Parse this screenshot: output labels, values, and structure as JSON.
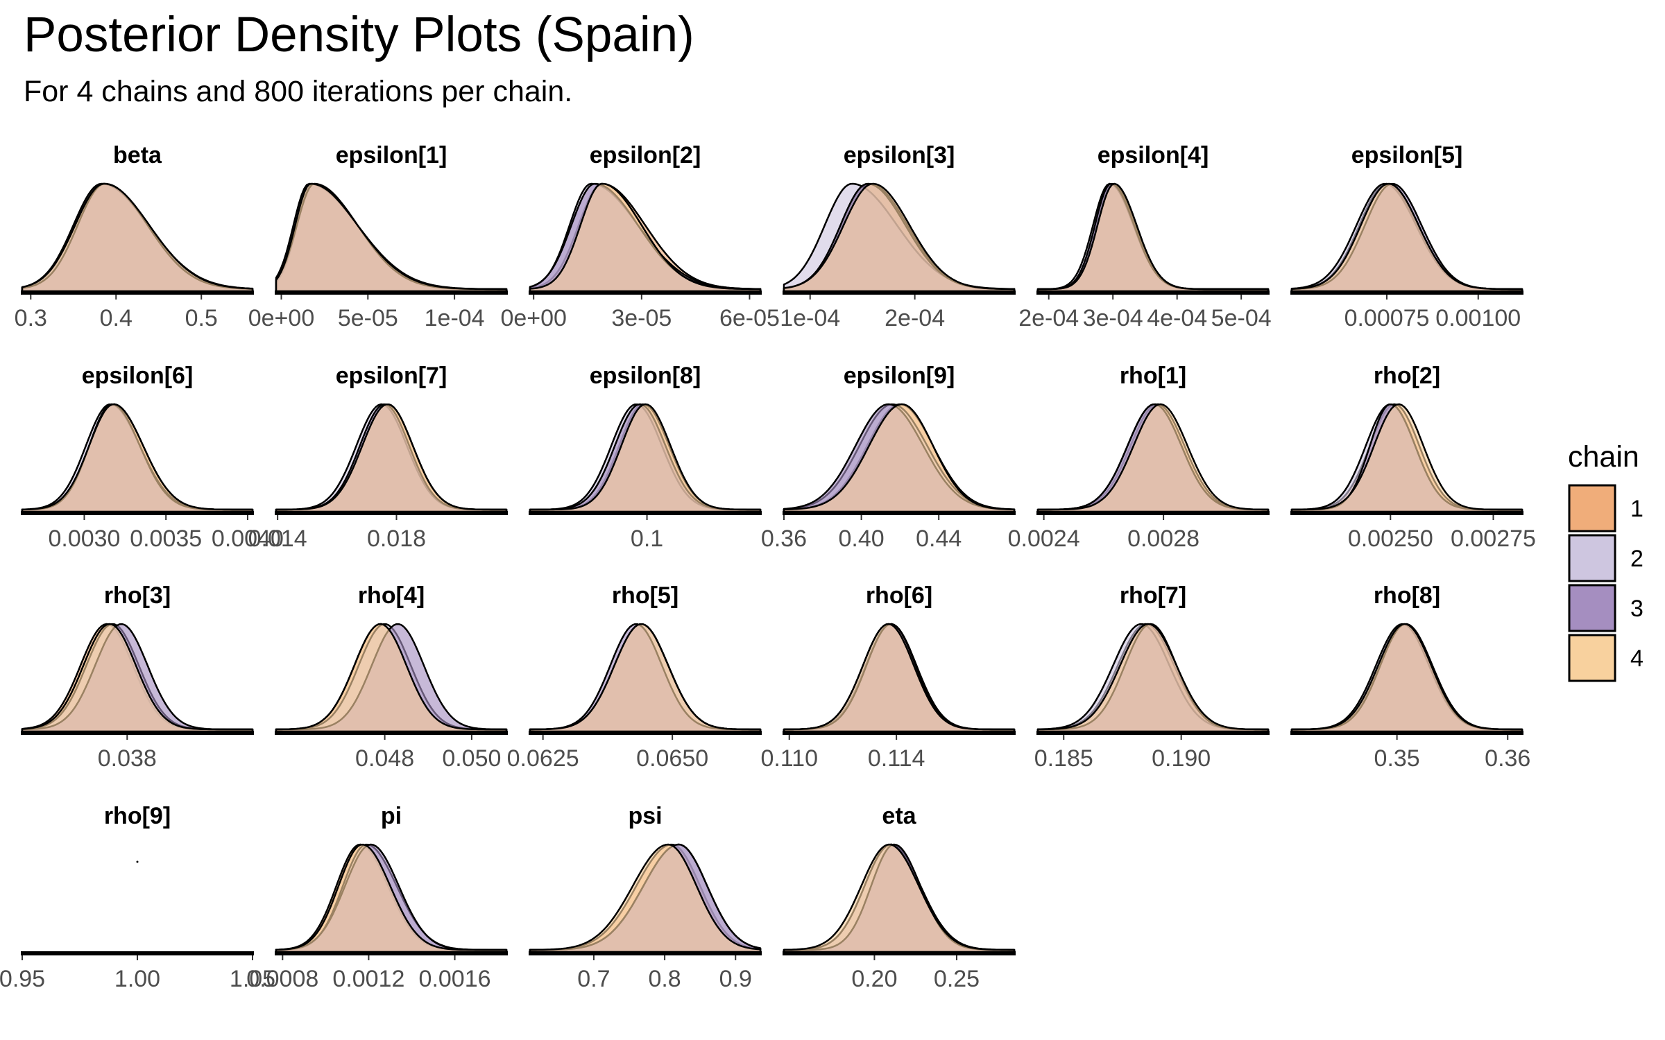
{
  "title": "Posterior Density Plots (Spain)",
  "subtitle": "For 4 chains and 800 iterations per chain.",
  "legend": {
    "title": "chain",
    "items": [
      {
        "label": "1",
        "color": "#F0AD7A"
      },
      {
        "label": "2",
        "color": "#CEC6E0"
      },
      {
        "label": "3",
        "color": "#A58EC0"
      },
      {
        "label": "4",
        "color": "#F8D19E"
      }
    ]
  },
  "chart_data": {
    "type": "area",
    "grid": false,
    "legend_position": "right",
    "series_names": [
      "1",
      "2",
      "3",
      "4"
    ],
    "panels": [
      {
        "name": "beta",
        "xlim": [
          0.29,
          0.56
        ],
        "ticks": [
          {
            "v": 0.3,
            "label": "0.3"
          },
          {
            "v": 0.4,
            "label": "0.4"
          },
          {
            "v": 0.5,
            "label": "0.5"
          }
        ],
        "chains": [
          {
            "mode": 0.385,
            "sd_left": 0.033,
            "sd_right": 0.052
          },
          {
            "mode": 0.383,
            "sd_left": 0.033,
            "sd_right": 0.055
          },
          {
            "mode": 0.387,
            "sd_left": 0.032,
            "sd_right": 0.05
          },
          {
            "mode": 0.386,
            "sd_left": 0.034,
            "sd_right": 0.053
          }
        ]
      },
      {
        "name": "epsilon[1]",
        "xlim": [
          -3e-06,
          0.00013
        ],
        "ticks": [
          {
            "v": 0,
            "label": "0e+00"
          },
          {
            "v": 5e-05,
            "label": "5e-05"
          },
          {
            "v": 0.0001,
            "label": "1e-04"
          }
        ],
        "chains": [
          {
            "mode": 1.8e-05,
            "sd_left": 9e-06,
            "sd_right": 2.6e-05
          },
          {
            "mode": 1.6e-05,
            "sd_left": 9e-06,
            "sd_right": 2.8e-05
          },
          {
            "mode": 1.9e-05,
            "sd_left": 1e-05,
            "sd_right": 2.5e-05
          },
          {
            "mode": 1.7e-05,
            "sd_left": 9e-06,
            "sd_right": 2.7e-05
          }
        ]
      },
      {
        "name": "epsilon[2]",
        "xlim": [
          -1e-06,
          6.3e-05
        ],
        "ticks": [
          {
            "v": 0,
            "label": "0e+00"
          },
          {
            "v": 3e-05,
            "label": "3e-05"
          },
          {
            "v": 6e-05,
            "label": "6e-05"
          }
        ],
        "chains": [
          {
            "mode": 1.9e-05,
            "sd_left": 6.5e-06,
            "sd_right": 1.2e-05
          },
          {
            "mode": 1.6e-05,
            "sd_left": 6e-06,
            "sd_right": 1.3e-05
          },
          {
            "mode": 1.7e-05,
            "sd_left": 6.5e-06,
            "sd_right": 1.2e-05
          },
          {
            "mode": 1.9e-05,
            "sd_left": 6e-06,
            "sd_right": 1.1e-05
          }
        ]
      },
      {
        "name": "epsilon[3]",
        "xlim": [
          7.5e-05,
          0.000295
        ],
        "ticks": [
          {
            "v": 0.0001,
            "label": "1e-04"
          },
          {
            "v": 0.0002,
            "label": "2e-04"
          }
        ],
        "chains": [
          {
            "mode": 0.000157,
            "sd_left": 2.7e-05,
            "sd_right": 3.6e-05
          },
          {
            "mode": 0.00014,
            "sd_left": 2.6e-05,
            "sd_right": 4.3e-05
          },
          {
            "mode": 0.000155,
            "sd_left": 2.6e-05,
            "sd_right": 3.6e-05
          },
          {
            "mode": 0.00016,
            "sd_left": 2.8e-05,
            "sd_right": 3.5e-05
          }
        ]
      },
      {
        "name": "epsilon[4]",
        "xlim": [
          0.000183,
          0.000542
        ],
        "ticks": [
          {
            "v": 0.0002,
            "label": "2e-04"
          },
          {
            "v": 0.0003,
            "label": "3e-04"
          },
          {
            "v": 0.0004,
            "label": "4e-04"
          },
          {
            "v": 0.0005,
            "label": "5e-04"
          }
        ],
        "chains": [
          {
            "mode": 0.0003,
            "sd_left": 2.5e-05,
            "sd_right": 3.6e-05
          },
          {
            "mode": 0.000295,
            "sd_left": 2.6e-05,
            "sd_right": 3.7e-05
          },
          {
            "mode": 0.000297,
            "sd_left": 2.5e-05,
            "sd_right": 3.6e-05
          },
          {
            "mode": 0.000302,
            "sd_left": 2.6e-05,
            "sd_right": 3.5e-05
          }
        ]
      },
      {
        "name": "epsilon[5]",
        "xlim": [
          0.00049,
          0.00112
        ],
        "ticks": [
          {
            "v": 0.00075,
            "label": "0.00075"
          },
          {
            "v": 0.001,
            "label": "0.00100"
          }
        ],
        "chains": [
          {
            "mode": 0.00075,
            "sd_left": 7.5e-05,
            "sd_right": 8.5e-05
          },
          {
            "mode": 0.000745,
            "sd_left": 7.8e-05,
            "sd_right": 8.5e-05
          },
          {
            "mode": 0.000765,
            "sd_left": 7.5e-05,
            "sd_right": 8e-05
          },
          {
            "mode": 0.000755,
            "sd_left": 7.6e-05,
            "sd_right": 8.2e-05
          }
        ]
      },
      {
        "name": "epsilon[6]",
        "xlim": [
          0.00262,
          0.00403
        ],
        "ticks": [
          {
            "v": 0.003,
            "label": "0.0030"
          },
          {
            "v": 0.0035,
            "label": "0.0035"
          },
          {
            "v": 0.004,
            "label": "0.0040"
          }
        ],
        "chains": [
          {
            "mode": 0.00318,
            "sd_left": 0.00015,
            "sd_right": 0.00018
          },
          {
            "mode": 0.00316,
            "sd_left": 0.00015,
            "sd_right": 0.00018
          },
          {
            "mode": 0.00317,
            "sd_left": 0.00014,
            "sd_right": 0.00017
          },
          {
            "mode": 0.00318,
            "sd_left": 0.00015,
            "sd_right": 0.00018
          }
        ]
      },
      {
        "name": "epsilon[7]",
        "xlim": [
          0.01395,
          0.0217
        ],
        "ticks": [
          {
            "v": 0.014,
            "label": "0.014"
          },
          {
            "v": 0.018,
            "label": "0.018"
          }
        ],
        "chains": [
          {
            "mode": 0.0177,
            "sd_left": 0.00085,
            "sd_right": 0.00085
          },
          {
            "mode": 0.0175,
            "sd_left": 0.00085,
            "sd_right": 0.00085
          },
          {
            "mode": 0.0176,
            "sd_left": 0.00083,
            "sd_right": 0.00083
          },
          {
            "mode": 0.0177,
            "sd_left": 0.00085,
            "sd_right": 0.00085
          }
        ]
      },
      {
        "name": "epsilon[8]",
        "xlim": [
          0.0836,
          0.1159
        ],
        "ticks": [
          {
            "v": 0.1,
            "label": "0.1"
          }
        ],
        "chains": [
          {
            "mode": 0.0995,
            "sd_left": 0.0034,
            "sd_right": 0.0036
          },
          {
            "mode": 0.0985,
            "sd_left": 0.0035,
            "sd_right": 0.0036
          },
          {
            "mode": 0.099,
            "sd_left": 0.0035,
            "sd_right": 0.0036
          },
          {
            "mode": 0.0998,
            "sd_left": 0.0034,
            "sd_right": 0.0035
          }
        ]
      },
      {
        "name": "epsilon[9]",
        "xlim": [
          0.36,
          0.479
        ],
        "ticks": [
          {
            "v": 0.36,
            "label": "0.36"
          },
          {
            "v": 0.4,
            "label": "0.40"
          },
          {
            "v": 0.44,
            "label": "0.44"
          }
        ],
        "chains": [
          {
            "mode": 0.42,
            "sd_left": 0.017,
            "sd_right": 0.017
          },
          {
            "mode": 0.416,
            "sd_left": 0.017,
            "sd_right": 0.018
          },
          {
            "mode": 0.414,
            "sd_left": 0.017,
            "sd_right": 0.018
          },
          {
            "mode": 0.421,
            "sd_left": 0.017,
            "sd_right": 0.016
          }
        ]
      },
      {
        "name": "rho[1]",
        "xlim": [
          0.00238,
          0.00315
        ],
        "ticks": [
          {
            "v": 0.0024,
            "label": "0.0024"
          },
          {
            "v": 0.0028,
            "label": "0.0028"
          }
        ],
        "chains": [
          {
            "mode": 0.00278,
            "sd_left": 9e-05,
            "sd_right": 9e-05
          },
          {
            "mode": 0.00277,
            "sd_left": 9e-05,
            "sd_right": 9e-05
          },
          {
            "mode": 0.00277,
            "sd_left": 9e-05,
            "sd_right": 9e-05
          },
          {
            "mode": 0.00279,
            "sd_left": 9e-05,
            "sd_right": 9e-05
          }
        ]
      },
      {
        "name": "rho[2]",
        "xlim": [
          0.00226,
          0.00282
        ],
        "ticks": [
          {
            "v": 0.0025,
            "label": "0.00250"
          },
          {
            "v": 0.00275,
            "label": "0.00275"
          }
        ],
        "chains": [
          {
            "mode": 0.00251,
            "sd_left": 6e-05,
            "sd_right": 6e-05
          },
          {
            "mode": 0.0025,
            "sd_left": 6e-05,
            "sd_right": 6e-05
          },
          {
            "mode": 0.0025,
            "sd_left": 5e-05,
            "sd_right": 6e-05
          },
          {
            "mode": 0.00252,
            "sd_left": 6e-05,
            "sd_right": 6e-05
          }
        ]
      },
      {
        "name": "rho[3]",
        "xlim": [
          0.0344,
          0.0423
        ],
        "ticks": [
          {
            "v": 0.038,
            "label": "0.038"
          }
        ],
        "chains": [
          {
            "mode": 0.0373,
            "sd_left": 0.0009,
            "sd_right": 0.0009
          },
          {
            "mode": 0.0375,
            "sd_left": 0.0009,
            "sd_right": 0.0009
          },
          {
            "mode": 0.0378,
            "sd_left": 0.0009,
            "sd_right": 0.0009
          },
          {
            "mode": 0.0374,
            "sd_left": 0.0009,
            "sd_right": 0.0009
          }
        ]
      },
      {
        "name": "rho[4]",
        "xlim": [
          0.0455,
          0.0508
        ],
        "ticks": [
          {
            "v": 0.048,
            "label": "0.048"
          },
          {
            "v": 0.05,
            "label": "0.050"
          }
        ],
        "chains": [
          {
            "mode": 0.0479,
            "sd_left": 0.0006,
            "sd_right": 0.0006
          },
          {
            "mode": 0.048,
            "sd_left": 0.0006,
            "sd_right": 0.0006
          },
          {
            "mode": 0.0483,
            "sd_left": 0.0006,
            "sd_right": 0.0006
          },
          {
            "mode": 0.0479,
            "sd_left": 0.0006,
            "sd_right": 0.0006
          }
        ]
      },
      {
        "name": "rho[5]",
        "xlim": [
          0.06225,
          0.0667
        ],
        "ticks": [
          {
            "v": 0.0625,
            "label": "0.0625"
          },
          {
            "v": 0.065,
            "label": "0.0650"
          }
        ],
        "chains": [
          {
            "mode": 0.0644,
            "sd_left": 0.00052,
            "sd_right": 0.00052
          },
          {
            "mode": 0.0644,
            "sd_left": 0.00052,
            "sd_right": 0.00052
          },
          {
            "mode": 0.0643,
            "sd_left": 0.0005,
            "sd_right": 0.0005
          },
          {
            "mode": 0.0644,
            "sd_left": 0.00052,
            "sd_right": 0.00052
          }
        ]
      },
      {
        "name": "rho[6]",
        "xlim": [
          0.1098,
          0.1184
        ],
        "ticks": [
          {
            "v": 0.11,
            "label": "0.110"
          },
          {
            "v": 0.114,
            "label": "0.114"
          }
        ],
        "chains": [
          {
            "mode": 0.1138,
            "sd_left": 0.00095,
            "sd_right": 0.00095
          },
          {
            "mode": 0.1137,
            "sd_left": 0.00095,
            "sd_right": 0.00095
          },
          {
            "mode": 0.1138,
            "sd_left": 0.00092,
            "sd_right": 0.00092
          },
          {
            "mode": 0.1137,
            "sd_left": 0.00095,
            "sd_right": 0.00095
          }
        ]
      },
      {
        "name": "rho[7]",
        "xlim": [
          0.1839,
          0.1937
        ],
        "ticks": [
          {
            "v": 0.185,
            "label": "0.185"
          },
          {
            "v": 0.19,
            "label": "0.190"
          }
        ],
        "chains": [
          {
            "mode": 0.1885,
            "sd_left": 0.0012,
            "sd_right": 0.0012
          },
          {
            "mode": 0.1883,
            "sd_left": 0.0012,
            "sd_right": 0.0012
          },
          {
            "mode": 0.1887,
            "sd_left": 0.0011,
            "sd_right": 0.0011
          },
          {
            "mode": 0.1886,
            "sd_left": 0.0012,
            "sd_right": 0.0012
          }
        ]
      },
      {
        "name": "rho[8]",
        "xlim": [
          0.3405,
          0.3613
        ],
        "ticks": [
          {
            "v": 0.35,
            "label": "0.35"
          },
          {
            "v": 0.36,
            "label": "0.36"
          }
        ],
        "chains": [
          {
            "mode": 0.3508,
            "sd_left": 0.0024,
            "sd_right": 0.0024
          },
          {
            "mode": 0.3505,
            "sd_left": 0.0024,
            "sd_right": 0.0024
          },
          {
            "mode": 0.3508,
            "sd_left": 0.0023,
            "sd_right": 0.0023
          },
          {
            "mode": 0.3507,
            "sd_left": 0.0024,
            "sd_right": 0.0024
          }
        ]
      },
      {
        "name": "rho[9]",
        "xlim": [
          0.95,
          1.05
        ],
        "ticks": [
          {
            "v": 0.95,
            "label": "0.95"
          },
          {
            "v": 1.0,
            "label": "1.00"
          },
          {
            "v": 1.05,
            "label": "1.05"
          }
        ],
        "point": 1.0,
        "chains": []
      },
      {
        "name": "pi",
        "xlim": [
          0.00077,
          0.00184
        ],
        "ticks": [
          {
            "v": 0.0008,
            "label": "0.0008"
          },
          {
            "v": 0.0012,
            "label": "0.0012"
          },
          {
            "v": 0.0016,
            "label": "0.0016"
          }
        ],
        "chains": [
          {
            "mode": 0.00116,
            "sd_left": 0.00011,
            "sd_right": 0.00013
          },
          {
            "mode": 0.00119,
            "sd_left": 0.00011,
            "sd_right": 0.00014
          },
          {
            "mode": 0.00121,
            "sd_left": 0.00012,
            "sd_right": 0.00013
          },
          {
            "mode": 0.00117,
            "sd_left": 0.00011,
            "sd_right": 0.00013
          }
        ]
      },
      {
        "name": "psi",
        "xlim": [
          0.61,
          0.935
        ],
        "ticks": [
          {
            "v": 0.7,
            "label": "0.7"
          },
          {
            "v": 0.8,
            "label": "0.8"
          },
          {
            "v": 0.9,
            "label": "0.9"
          }
        ],
        "chains": [
          {
            "mode": 0.81,
            "sd_left": 0.05,
            "sd_right": 0.04
          },
          {
            "mode": 0.82,
            "sd_left": 0.05,
            "sd_right": 0.04
          },
          {
            "mode": 0.82,
            "sd_left": 0.05,
            "sd_right": 0.04
          },
          {
            "mode": 0.805,
            "sd_left": 0.05,
            "sd_right": 0.04
          }
        ]
      },
      {
        "name": "eta",
        "xlim": [
          0.145,
          0.285
        ],
        "ticks": [
          {
            "v": 0.2,
            "label": "0.20"
          },
          {
            "v": 0.25,
            "label": "0.25"
          }
        ],
        "chains": [
          {
            "mode": 0.21,
            "sd_left": 0.016,
            "sd_right": 0.018
          },
          {
            "mode": 0.21,
            "sd_left": 0.016,
            "sd_right": 0.018
          },
          {
            "mode": 0.212,
            "sd_left": 0.014,
            "sd_right": 0.016
          },
          {
            "mode": 0.209,
            "sd_left": 0.017,
            "sd_right": 0.018
          }
        ]
      }
    ]
  }
}
